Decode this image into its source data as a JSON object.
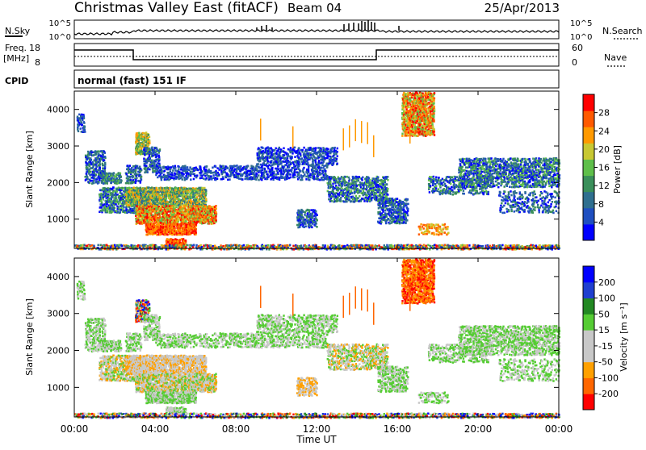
{
  "header": {
    "station": "Christmas Valley East (fitACF)",
    "beam": "Beam 04",
    "date": "25/Apr/2013"
  },
  "status": {
    "nsky_label": "N.Sky",
    "nsky_ticks": [
      "10^5",
      "10^0"
    ],
    "nsearch_label": "N.Search",
    "nsearch_ticks": [
      "10^5",
      "10^0"
    ],
    "freq_label": "Freq.",
    "freq_unit": "[MHz]",
    "freq_ticks": [
      "18",
      "8"
    ],
    "nave_label": "Nave",
    "nave_ticks": [
      "60",
      "0"
    ],
    "cpid_label": "CPID",
    "cpid_value": "normal (fast) 151 IF"
  },
  "colors": {
    "power": [
      "#0000ff",
      "#1f4fc0",
      "#2f6f8f",
      "#3a8f5a",
      "#5fbf4a",
      "#c8c832",
      "#ff9900",
      "#ff5a00",
      "#ff0000"
    ],
    "velocity": [
      "#ff0000",
      "#ff6600",
      "#ffa000",
      "#c8c8c8",
      "#c8c8c8",
      "#55cc33",
      "#228822",
      "#1f3fd0",
      "#0000ff"
    ]
  },
  "chart_data": [
    {
      "type": "heatmap",
      "ylabel": "Slant Range [km]",
      "xlabel": "Time UT",
      "y_ticks": [
        "1000",
        "2000",
        "3000",
        "4000"
      ],
      "ylim": [
        200,
        4500
      ],
      "x_ticks": [
        "00:00",
        "04:00",
        "08:00",
        "12:00",
        "16:00",
        "20:00",
        "00:00"
      ],
      "xlim_hours": [
        0,
        24
      ],
      "colorbar_label": "Power [dB]",
      "colorbar_ticks": [
        "4",
        "8",
        "12",
        "16",
        "20",
        "24",
        "28"
      ]
    },
    {
      "type": "heatmap",
      "ylabel": "Slant Range [km]",
      "xlabel": "Time UT",
      "y_ticks": [
        "1000",
        "2000",
        "3000",
        "4000"
      ],
      "ylim": [
        200,
        4500
      ],
      "x_ticks": [
        "00:00",
        "04:00",
        "08:00",
        "12:00",
        "16:00",
        "20:00",
        "00:00"
      ],
      "xlim_hours": [
        0,
        24
      ],
      "colorbar_label": "Velocity [m s⁻¹]",
      "colorbar_ticks": [
        "200",
        "100",
        "50",
        "15",
        "-15",
        "-50",
        "-100",
        "-200"
      ]
    }
  ],
  "x_axis": {
    "label": "Time UT",
    "ticks": [
      "00:00",
      "04:00",
      "08:00",
      "12:00",
      "16:00",
      "20:00",
      "00:00"
    ]
  }
}
